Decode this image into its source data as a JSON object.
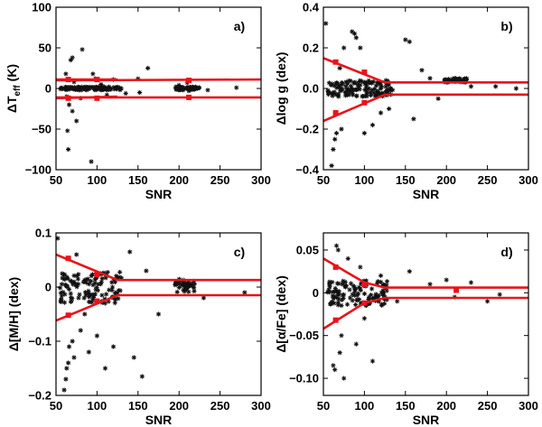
{
  "chart_data": [
    {
      "id": "a",
      "type": "scatter",
      "panel_label": "a)",
      "xlabel": "SNR",
      "ylabel": "ΔT",
      "ylabel_sub": "eff",
      "ylabel_tail": " (K)",
      "xlim": [
        50,
        300
      ],
      "ylim": [
        -100,
        100
      ],
      "xticks": [
        50,
        100,
        150,
        200,
        250,
        300
      ],
      "yticks": [
        -100,
        -50,
        0,
        50,
        100
      ],
      "ytick_labels": [
        "−100",
        "−50",
        "0",
        "50",
        "100"
      ],
      "envelope_upper": [
        [
          50,
          10
        ],
        [
          300,
          11
        ]
      ],
      "envelope_lower": [
        [
          50,
          -11
        ],
        [
          125,
          -11
        ],
        [
          300,
          -11
        ]
      ],
      "envelope_upper_short": [
        [
          50,
          11
        ],
        [
          125,
          11
        ]
      ],
      "envelope_lower_short": [
        [
          50,
          -12
        ],
        [
          125,
          -10
        ]
      ],
      "markers": [
        [
          65,
          11
        ],
        [
          65,
          -12
        ],
        [
          100,
          11
        ],
        [
          100,
          -12
        ],
        [
          212,
          10
        ],
        [
          212,
          -11
        ]
      ],
      "points": [
        [
          62,
          18
        ],
        [
          63,
          -10
        ],
        [
          65,
          -75
        ],
        [
          64,
          -52
        ],
        [
          66,
          -20
        ],
        [
          68,
          35
        ],
        [
          70,
          -28
        ],
        [
          70,
          38
        ],
        [
          72,
          8
        ],
        [
          75,
          -40
        ],
        [
          80,
          -12
        ],
        [
          82,
          48
        ],
        [
          88,
          1
        ],
        [
          93,
          -90
        ],
        [
          95,
          18
        ],
        [
          98,
          12
        ],
        [
          105,
          5
        ],
        [
          112,
          -8
        ],
        [
          120,
          11
        ],
        [
          135,
          -6
        ],
        [
          150,
          12
        ],
        [
          152,
          -5
        ],
        [
          162,
          25
        ],
        [
          200,
          4
        ],
        [
          210,
          7
        ],
        [
          212,
          -3
        ],
        [
          220,
          2
        ],
        [
          235,
          -2
        ],
        [
          270,
          1
        ]
      ],
      "dense_band": [
        [
          55,
          130,
          -2,
          2
        ],
        [
          195,
          225,
          -2,
          2
        ]
      ]
    },
    {
      "id": "b",
      "type": "scatter",
      "panel_label": "b)",
      "xlabel": "SNR",
      "ylabel": "Δlog g (dex)",
      "xlim": [
        50,
        300
      ],
      "ylim": [
        -0.4,
        0.4
      ],
      "xticks": [
        50,
        100,
        150,
        200,
        250,
        300
      ],
      "yticks": [
        -0.4,
        -0.2,
        0,
        0.2,
        0.4
      ],
      "ytick_labels": [
        "−0.4",
        "−0.2",
        "0.0",
        "0.2",
        "0.4"
      ],
      "envelope_upper": [
        [
          50,
          0.15
        ],
        [
          125,
          0.03
        ],
        [
          300,
          0.03
        ]
      ],
      "envelope_lower": [
        [
          50,
          -0.16
        ],
        [
          125,
          -0.03
        ],
        [
          300,
          -0.03
        ]
      ],
      "markers": [
        [
          65,
          0.13
        ],
        [
          65,
          -0.12
        ],
        [
          100,
          0.08
        ],
        [
          100,
          -0.07
        ]
      ],
      "points": [
        [
          53,
          0.32
        ],
        [
          60,
          -0.38
        ],
        [
          62,
          -0.3
        ],
        [
          64,
          -0.25
        ],
        [
          66,
          -0.22
        ],
        [
          70,
          0.1
        ],
        [
          72,
          -0.2
        ],
        [
          75,
          0.2
        ],
        [
          85,
          0.28
        ],
        [
          88,
          0.27
        ],
        [
          90,
          0.25
        ],
        [
          95,
          0.2
        ],
        [
          100,
          -0.22
        ],
        [
          110,
          -0.18
        ],
        [
          120,
          -0.12
        ],
        [
          130,
          -0.1
        ],
        [
          150,
          0.24
        ],
        [
          155,
          0.23
        ],
        [
          160,
          -0.15
        ],
        [
          170,
          0.09
        ],
        [
          180,
          0.05
        ],
        [
          190,
          -0.05
        ],
        [
          200,
          0.03
        ],
        [
          210,
          0.05
        ],
        [
          230,
          0.01
        ],
        [
          260,
          0.01
        ],
        [
          285,
          0.0
        ]
      ],
      "dense_band": [
        [
          55,
          135,
          -0.04,
          0.04
        ],
        [
          195,
          225,
          0.03,
          0.05
        ]
      ]
    },
    {
      "id": "c",
      "type": "scatter",
      "panel_label": "c)",
      "xlabel": "SNR",
      "ylabel": "Δ[M/H] (dex)",
      "xlim": [
        50,
        300
      ],
      "ylim": [
        -0.2,
        0.1
      ],
      "xticks": [
        50,
        100,
        150,
        200,
        250,
        300
      ],
      "yticks": [
        -0.2,
        -0.1,
        0,
        0.1
      ],
      "ytick_labels": [
        "−0.2",
        "−0.1",
        "0",
        "0.1"
      ],
      "envelope_upper": [
        [
          50,
          0.06
        ],
        [
          125,
          0.013
        ],
        [
          300,
          0.013
        ]
      ],
      "envelope_lower": [
        [
          50,
          -0.062
        ],
        [
          125,
          -0.015
        ],
        [
          300,
          -0.015
        ]
      ],
      "markers": [
        [
          65,
          0.053
        ],
        [
          65,
          -0.052
        ],
        [
          100,
          0.023
        ],
        [
          100,
          -0.026
        ]
      ],
      "points": [
        [
          52,
          0.09
        ],
        [
          60,
          -0.19
        ],
        [
          62,
          -0.17
        ],
        [
          63,
          -0.15
        ],
        [
          65,
          -0.14
        ],
        [
          66,
          -0.11
        ],
        [
          70,
          -0.1
        ],
        [
          72,
          -0.13
        ],
        [
          75,
          0.06
        ],
        [
          80,
          -0.08
        ],
        [
          85,
          -0.05
        ],
        [
          90,
          -0.12
        ],
        [
          100,
          -0.09
        ],
        [
          110,
          -0.15
        ],
        [
          120,
          -0.11
        ],
        [
          140,
          0.065
        ],
        [
          145,
          -0.13
        ],
        [
          155,
          -0.165
        ],
        [
          160,
          0.03
        ],
        [
          175,
          -0.05
        ],
        [
          200,
          0.01
        ],
        [
          210,
          0.0
        ],
        [
          230,
          -0.02
        ],
        [
          280,
          -0.01
        ]
      ],
      "dense_band": [
        [
          55,
          130,
          -0.03,
          0.03
        ],
        [
          195,
          220,
          -0.01,
          0.015
        ]
      ]
    },
    {
      "id": "d",
      "type": "scatter",
      "panel_label": "d)",
      "xlabel": "SNR",
      "ylabel": "Δ[α/Fe] (dex)",
      "xlim": [
        50,
        300
      ],
      "ylim": [
        -0.12,
        0.07
      ],
      "xticks": [
        50,
        100,
        150,
        200,
        250,
        300
      ],
      "yticks": [
        -0.1,
        -0.05,
        0,
        0.05
      ],
      "ytick_labels": [
        "−0.10",
        "−0.05",
        "0",
        "0.05"
      ],
      "envelope_upper": [
        [
          50,
          0.04
        ],
        [
          100,
          0.012
        ],
        [
          125,
          0.006
        ],
        [
          300,
          0.006
        ]
      ],
      "envelope_lower": [
        [
          50,
          -0.042
        ],
        [
          100,
          -0.012
        ],
        [
          125,
          -0.006
        ],
        [
          300,
          -0.006
        ]
      ],
      "markers": [
        [
          65,
          0.03
        ],
        [
          65,
          -0.032
        ],
        [
          100,
          0.01
        ],
        [
          100,
          -0.012
        ],
        [
          212,
          0.003
        ]
      ],
      "points": [
        [
          62,
          -0.085
        ],
        [
          64,
          -0.09
        ],
        [
          66,
          0.055
        ],
        [
          68,
          0.05
        ],
        [
          70,
          -0.07
        ],
        [
          72,
          -0.05
        ],
        [
          75,
          -0.1
        ],
        [
          80,
          0.04
        ],
        [
          90,
          -0.06
        ],
        [
          95,
          0.03
        ],
        [
          100,
          -0.03
        ],
        [
          110,
          -0.08
        ],
        [
          120,
          0.02
        ],
        [
          140,
          -0.01
        ],
        [
          155,
          0.025
        ],
        [
          180,
          0.01
        ],
        [
          200,
          0.015
        ],
        [
          210,
          -0.005
        ],
        [
          230,
          0.012
        ],
        [
          250,
          -0.01
        ],
        [
          265,
          -0.002
        ]
      ],
      "dense_band": [
        [
          55,
          130,
          -0.015,
          0.015
        ]
      ]
    }
  ],
  "colors": {
    "axis": "#000000",
    "envelope": "#e8141a",
    "points": "#111111"
  }
}
